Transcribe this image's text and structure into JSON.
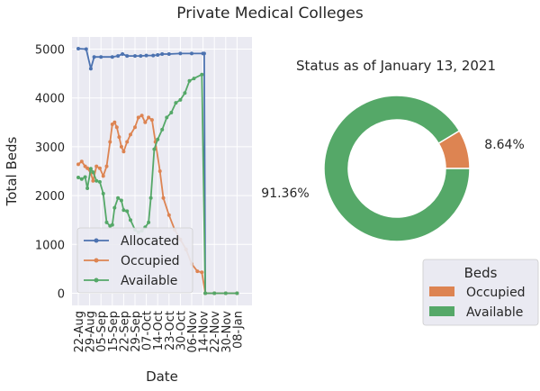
{
  "page": {
    "suptitle": "Private Medical Colleges"
  },
  "chart_data": [
    {
      "type": "line",
      "xlabel": "Date",
      "ylabel": "Total Beds",
      "ylim": [
        -250,
        5250
      ],
      "yticks": [
        0,
        1000,
        2000,
        3000,
        4000,
        5000
      ],
      "grid": true,
      "xticks": [
        "22-Aug",
        "29-Aug",
        "05-Sep",
        "15-Sep",
        "22-Sep",
        "29-Sep",
        "07-Oct",
        "14-Oct",
        "23-Oct",
        "30-Oct",
        "06-Nov",
        "14-Nov",
        "22-Nov",
        "30-Nov",
        "08-Jan"
      ],
      "legend_position": "lower-left",
      "series": [
        {
          "name": "Allocated",
          "color": "#4c72b0",
          "points": [
            [
              0,
              5010
            ],
            [
              0.7,
              5000
            ],
            [
              1.1,
              4600
            ],
            [
              1.4,
              4840
            ],
            [
              2,
              4840
            ],
            [
              3,
              4840
            ],
            [
              3.5,
              4860
            ],
            [
              3.9,
              4900
            ],
            [
              4.3,
              4860
            ],
            [
              5,
              4860
            ],
            [
              5.5,
              4860
            ],
            [
              6,
              4870
            ],
            [
              6.6,
              4870
            ],
            [
              7,
              4880
            ],
            [
              7.4,
              4900
            ],
            [
              8,
              4900
            ],
            [
              9,
              4910
            ],
            [
              10,
              4910
            ],
            [
              11,
              4910
            ],
            [
              11.1,
              4910
            ],
            [
              11.2,
              0
            ],
            [
              12,
              0
            ],
            [
              13,
              0
            ],
            [
              14,
              0
            ]
          ]
        },
        {
          "name": "Occupied",
          "color": "#dd8452",
          "points": [
            [
              0,
              2640
            ],
            [
              0.3,
              2700
            ],
            [
              0.6,
              2600
            ],
            [
              0.8,
              2560
            ],
            [
              1.1,
              2460
            ],
            [
              1.3,
              2300
            ],
            [
              1.6,
              2600
            ],
            [
              1.9,
              2560
            ],
            [
              2.2,
              2400
            ],
            [
              2.5,
              2600
            ],
            [
              2.8,
              3100
            ],
            [
              3,
              3460
            ],
            [
              3.2,
              3500
            ],
            [
              3.4,
              3400
            ],
            [
              3.6,
              3200
            ],
            [
              3.8,
              3000
            ],
            [
              4,
              2900
            ],
            [
              4.3,
              3100
            ],
            [
              4.6,
              3250
            ],
            [
              5,
              3400
            ],
            [
              5.3,
              3600
            ],
            [
              5.6,
              3640
            ],
            [
              5.9,
              3500
            ],
            [
              6.2,
              3600
            ],
            [
              6.5,
              3550
            ],
            [
              6.8,
              3100
            ],
            [
              7.2,
              2500
            ],
            [
              7.5,
              1950
            ],
            [
              8,
              1600
            ],
            [
              8.5,
              1300
            ],
            [
              9,
              1100
            ],
            [
              9.5,
              900
            ],
            [
              10,
              600
            ],
            [
              10.5,
              450
            ],
            [
              10.9,
              430
            ],
            [
              11.2,
              0
            ],
            [
              12,
              0
            ],
            [
              13,
              0
            ],
            [
              14,
              0
            ]
          ]
        },
        {
          "name": "Available",
          "color": "#55a868",
          "points": [
            [
              0,
              2370
            ],
            [
              0.3,
              2340
            ],
            [
              0.6,
              2380
            ],
            [
              0.8,
              2150
            ],
            [
              1.1,
              2550
            ],
            [
              1.3,
              2480
            ],
            [
              1.6,
              2300
            ],
            [
              1.9,
              2280
            ],
            [
              2.2,
              2040
            ],
            [
              2.5,
              1450
            ],
            [
              2.8,
              1380
            ],
            [
              3,
              1400
            ],
            [
              3.2,
              1750
            ],
            [
              3.5,
              1950
            ],
            [
              3.8,
              1900
            ],
            [
              4,
              1700
            ],
            [
              4.3,
              1680
            ],
            [
              4.6,
              1500
            ],
            [
              5,
              1300
            ],
            [
              5.3,
              1250
            ],
            [
              5.6,
              1280
            ],
            [
              5.9,
              1350
            ],
            [
              6.2,
              1450
            ],
            [
              6.4,
              1950
            ],
            [
              6.7,
              2950
            ],
            [
              7,
              3150
            ],
            [
              7.4,
              3350
            ],
            [
              7.8,
              3600
            ],
            [
              8.2,
              3700
            ],
            [
              8.6,
              3900
            ],
            [
              9,
              3960
            ],
            [
              9.4,
              4100
            ],
            [
              9.8,
              4350
            ],
            [
              10.2,
              4400
            ],
            [
              10.9,
              4480
            ],
            [
              11.2,
              0
            ],
            [
              12,
              0
            ],
            [
              13,
              0
            ],
            [
              14,
              0
            ]
          ]
        }
      ]
    },
    {
      "type": "pie",
      "title": "Status as of January 13, 2021",
      "donut": true,
      "slices": [
        {
          "label": "Occupied",
          "value": 8.64,
          "pct_label": "8.64%",
          "color": "#dd8452"
        },
        {
          "label": "Available",
          "value": 91.36,
          "pct_label": "91.36%",
          "color": "#55a868"
        }
      ],
      "legend_title": "Beds",
      "legend_position": "lower-right"
    }
  ]
}
